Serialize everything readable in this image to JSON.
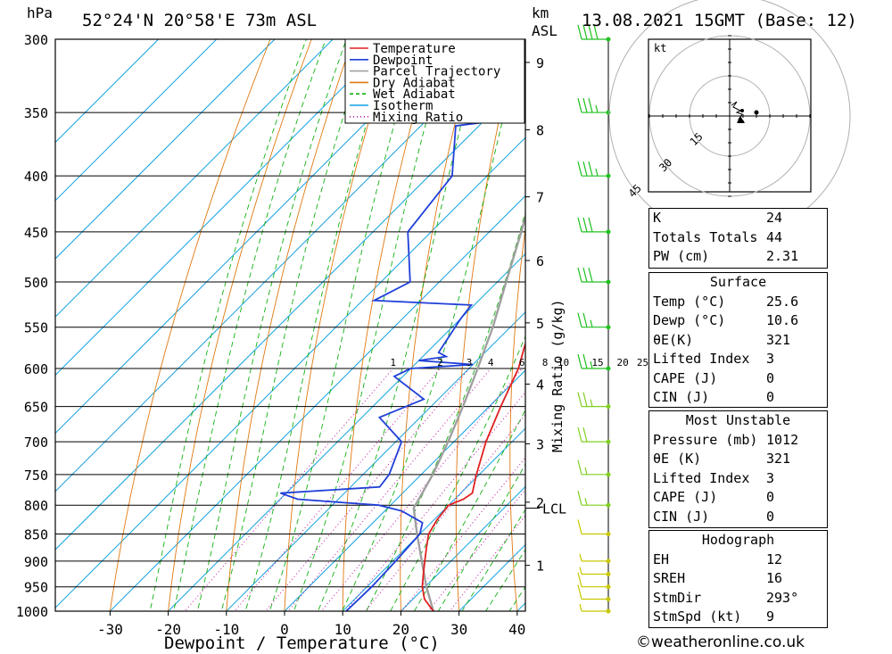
{
  "header": {
    "location": "52°24'N 20°58'E 73m ASL",
    "datetime": "13.08.2021 15GMT (Base: 12)",
    "hpa_unit": "hPa",
    "km_unit": "km",
    "asl_unit": "ASL"
  },
  "axes": {
    "xlabel": "Dewpoint / Temperature (°C)",
    "mixing_label": "Mixing Ratio (g/kg)",
    "x_ticks": [
      -30,
      -20,
      -10,
      0,
      10,
      20,
      30,
      40
    ],
    "p_ticks": [
      300,
      350,
      400,
      450,
      500,
      550,
      600,
      650,
      700,
      750,
      800,
      850,
      900,
      950,
      1000
    ],
    "km_ticks": [
      {
        "label": "1",
        "p": 908
      },
      {
        "label": "2",
        "p": 795
      },
      {
        "label": "3",
        "p": 703
      },
      {
        "label": "4",
        "p": 620
      },
      {
        "label": "5",
        "p": 545
      },
      {
        "label": "6",
        "p": 478
      },
      {
        "label": "7",
        "p": 418
      },
      {
        "label": "8",
        "p": 363
      },
      {
        "label": "9",
        "p": 315
      }
    ],
    "lcl_label": "LCL",
    "lcl_p": 805,
    "mixing_ratios": [
      "1",
      "2",
      "3",
      "4",
      "6",
      "8",
      "10",
      "15",
      "20",
      "25"
    ]
  },
  "legend": [
    {
      "label": "Temperature",
      "color": "#e02020",
      "dash": "solid"
    },
    {
      "label": "Dewpoint",
      "color": "#1f3fd8",
      "dash": "solid"
    },
    {
      "label": "Parcel Trajectory",
      "color": "#a0a0a0",
      "dash": "solid"
    },
    {
      "label": "Dry Adiabat",
      "color": "#e07810",
      "dash": "solid"
    },
    {
      "label": "Wet Adiabat",
      "color": "#10b010",
      "dash": "dashed"
    },
    {
      "label": "Isotherm",
      "color": "#10a0e0",
      "dash": "solid"
    },
    {
      "label": "Mixing Ratio",
      "color": "#c0109f",
      "dash": "dotted"
    }
  ],
  "chart_data": {
    "type": "line",
    "title": "52°24'N 20°58'E 73m ASL",
    "xlabel": "Dewpoint / Temperature (°C)",
    "ylabel": "hPa",
    "xlim": [
      -40,
      40
    ],
    "ylim": [
      1000,
      300
    ],
    "y_scale": "log (skew-T)",
    "series": [
      {
        "name": "Temperature",
        "color": "#e02020",
        "points": [
          [
            1000,
            25.6
          ],
          [
            975,
            22
          ],
          [
            950,
            19.5
          ],
          [
            925,
            17.5
          ],
          [
            900,
            15.5
          ],
          [
            875,
            13.5
          ],
          [
            850,
            11.5
          ],
          [
            825,
            10.5
          ],
          [
            800,
            10
          ],
          [
            790,
            11.5
          ],
          [
            780,
            12
          ],
          [
            750,
            9.5
          ],
          [
            700,
            5.5
          ],
          [
            650,
            2
          ],
          [
            600,
            -1.5
          ],
          [
            575,
            -4
          ],
          [
            550,
            -6.5
          ],
          [
            525,
            -9.5
          ],
          [
            520,
            -8.5
          ],
          [
            500,
            -10.5
          ],
          [
            450,
            -14
          ],
          [
            400,
            -20.5
          ],
          [
            350,
            -28
          ],
          [
            300,
            -34.5
          ]
        ]
      },
      {
        "name": "Dewpoint",
        "color": "#1f3fd8",
        "points": [
          [
            1000,
            10.6
          ],
          [
            950,
            10.8
          ],
          [
            900,
            10.5
          ],
          [
            850,
            10
          ],
          [
            830,
            8.5
          ],
          [
            810,
            3
          ],
          [
            800,
            -2
          ],
          [
            790,
            -17
          ],
          [
            780,
            -21
          ],
          [
            770,
            -5
          ],
          [
            750,
            -5.5
          ],
          [
            700,
            -9
          ],
          [
            665,
            -17
          ],
          [
            640,
            -12.5
          ],
          [
            610,
            -21.5
          ],
          [
            600,
            -20
          ],
          [
            595,
            -10
          ],
          [
            590,
            -20
          ],
          [
            585,
            -16
          ],
          [
            580,
            -18
          ],
          [
            540,
            -20
          ],
          [
            525,
            -20.5
          ],
          [
            520,
            -38
          ],
          [
            500,
            -35
          ],
          [
            450,
            -44
          ],
          [
            400,
            -46
          ],
          [
            360,
            -54
          ],
          [
            355,
            -46
          ],
          [
            350,
            -56
          ],
          [
            330,
            -56
          ],
          [
            325,
            -48
          ],
          [
            320,
            -55
          ],
          [
            315,
            -56
          ],
          [
            310,
            -47
          ],
          [
            305,
            -53
          ],
          [
            300,
            -55
          ]
        ]
      },
      {
        "name": "Parcel Trajectory",
        "color": "#a0a0a0",
        "points": [
          [
            1000,
            25.6
          ],
          [
            950,
            20.2
          ],
          [
            900,
            15
          ],
          [
            850,
            9.5
          ],
          [
            805,
            4.5
          ],
          [
            750,
            2
          ],
          [
            700,
            -1
          ],
          [
            650,
            -4.5
          ],
          [
            600,
            -8.5
          ],
          [
            550,
            -13
          ],
          [
            500,
            -18.5
          ],
          [
            450,
            -24.5
          ],
          [
            400,
            -31.5
          ],
          [
            350,
            -40
          ],
          [
            300,
            -50
          ]
        ]
      }
    ],
    "wind_barbs": [
      {
        "p": 1000,
        "speed_kt": 5
      },
      {
        "p": 975,
        "speed_kt": 10
      },
      {
        "p": 950,
        "speed_kt": 10
      },
      {
        "p": 925,
        "speed_kt": 5
      },
      {
        "p": 900,
        "speed_kt": 5
      },
      {
        "p": 850,
        "speed_kt": 10
      },
      {
        "p": 800,
        "speed_kt": 15
      },
      {
        "p": 750,
        "speed_kt": 15
      },
      {
        "p": 700,
        "speed_kt": 20
      },
      {
        "p": 650,
        "speed_kt": 25
      },
      {
        "p": 600,
        "speed_kt": 25
      },
      {
        "p": 550,
        "speed_kt": 25
      },
      {
        "p": 500,
        "speed_kt": 30
      },
      {
        "p": 450,
        "speed_kt": 30
      },
      {
        "p": 400,
        "speed_kt": 35
      },
      {
        "p": 350,
        "speed_kt": 35
      },
      {
        "p": 300,
        "speed_kt": 40
      }
    ],
    "hodograph": {
      "unit": "kt",
      "rings_kt": [
        15,
        30,
        45
      ],
      "ring_labels": [
        "15",
        "30",
        "45"
      ]
    }
  },
  "indices": [
    {
      "label": "K",
      "value": "24"
    },
    {
      "label": "Totals Totals",
      "value": "44"
    },
    {
      "label": "PW (cm)",
      "value": "2.31"
    }
  ],
  "surface": {
    "title": "Surface",
    "rows": [
      {
        "label": "Temp (°C)",
        "value": "25.6"
      },
      {
        "label": "Dewp (°C)",
        "value": "10.6"
      },
      {
        "label": "θE(K)",
        "value": "321"
      },
      {
        "label": "Lifted Index",
        "value": "3"
      },
      {
        "label": "CAPE (J)",
        "value": "0"
      },
      {
        "label": "CIN (J)",
        "value": "0"
      }
    ]
  },
  "most_unstable": {
    "title": "Most Unstable",
    "rows": [
      {
        "label": "Pressure (mb)",
        "value": "1012"
      },
      {
        "label": "θE (K)",
        "value": "321"
      },
      {
        "label": "Lifted Index",
        "value": "3"
      },
      {
        "label": "CAPE (J)",
        "value": "0"
      },
      {
        "label": "CIN (J)",
        "value": "0"
      }
    ]
  },
  "hodograph_table": {
    "title": "Hodograph",
    "rows": [
      {
        "label": "EH",
        "value": "12"
      },
      {
        "label": "SREH",
        "value": "16"
      },
      {
        "label": "StmDir",
        "value": "293°"
      },
      {
        "label": "StmSpd (kt)",
        "value": "9"
      }
    ]
  },
  "credit": "©weatheronline.co.uk"
}
